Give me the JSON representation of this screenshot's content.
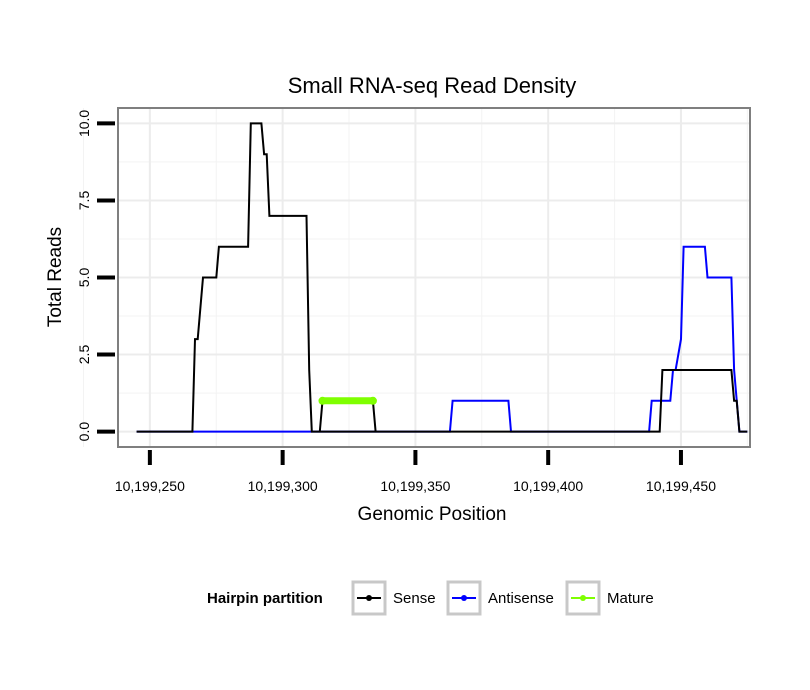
{
  "chart_data": {
    "type": "line",
    "title": "Small RNA-seq Read Density",
    "xlabel": "Genomic Position",
    "ylabel": "Total Reads",
    "xlim": [
      10199238,
      10199476
    ],
    "ylim": [
      -0.5,
      10.5
    ],
    "x_ticks": [
      10199250,
      10199300,
      10199350,
      10199400,
      10199450
    ],
    "x_tick_labels": [
      "10,199,250",
      "10,199,300",
      "10,199,350",
      "10,199,400",
      "10,199,450"
    ],
    "y_ticks": [
      0,
      2.5,
      5,
      7.5,
      10
    ],
    "y_tick_labels": [
      "0.0",
      "2.5",
      "5.0",
      "7.5",
      "10.0"
    ],
    "grid": true,
    "legend": {
      "title": "Hairpin partition",
      "position": "bottom",
      "entries": [
        "Sense",
        "Antisense",
        "Mature"
      ]
    },
    "series": [
      {
        "name": "Sense",
        "color": "#000000",
        "x": [
          10199245,
          10199266,
          10199267,
          10199268,
          10199270,
          10199275,
          10199276,
          10199287,
          10199288,
          10199292,
          10199293,
          10199294,
          10199295,
          10199309,
          10199310,
          10199311,
          10199312,
          10199316,
          10199317,
          10199442,
          10199443,
          10199469,
          10199470,
          10199471,
          10199472,
          10199475
        ],
        "y": [
          0,
          0,
          3,
          3,
          5,
          5,
          6,
          6,
          10,
          10,
          9,
          9,
          7,
          7,
          2,
          0,
          0,
          0,
          0,
          0,
          2,
          2,
          1,
          1,
          0,
          0
        ]
      },
      {
        "name": "Antisense",
        "color": "#0000ff",
        "x": [
          10199245,
          10199363,
          10199364,
          10199385,
          10199386,
          10199438,
          10199439,
          10199446,
          10199447,
          10199448,
          10199450,
          10199451,
          10199459,
          10199460,
          10199469,
          10199470,
          10199472,
          10199475
        ],
        "y": [
          0,
          0,
          1,
          1,
          0,
          0,
          1,
          1,
          2,
          2,
          3,
          6,
          6,
          5,
          5,
          2,
          0,
          0
        ]
      },
      {
        "name": "Mature",
        "color": "#7fff00",
        "x": [
          10199315,
          10199334
        ],
        "y": [
          1,
          1
        ]
      }
    ],
    "mature_box_y": [
      1,
      0
    ]
  }
}
